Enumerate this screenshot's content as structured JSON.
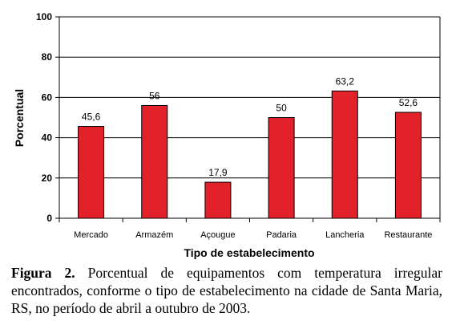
{
  "chart_data": {
    "type": "bar",
    "categories": [
      "Mercado",
      "Armazém",
      "Açougue",
      "Padaria",
      "Lancheria",
      "Restaurante"
    ],
    "values": [
      45.6,
      56,
      17.9,
      50,
      63.2,
      52.6
    ],
    "value_labels": [
      "45,6",
      "56",
      "17,9",
      "50",
      "63,2",
      "52,6"
    ],
    "ylabel": "Porcentual",
    "xlabel": "Tipo de estabelecimento",
    "ylim": [
      0,
      100
    ],
    "yticks": [
      0,
      20,
      40,
      60,
      80,
      100
    ],
    "grid": "horizontal",
    "bar_color": "#e3212b"
  },
  "caption": {
    "label": "Figura 2.",
    "text": "Porcentual de equipamentos com temperatura irregular encontrados, conforme o tipo de estabelecimento na cidade de Santa Maria, RS, no período de abril a outubro de  2003."
  }
}
